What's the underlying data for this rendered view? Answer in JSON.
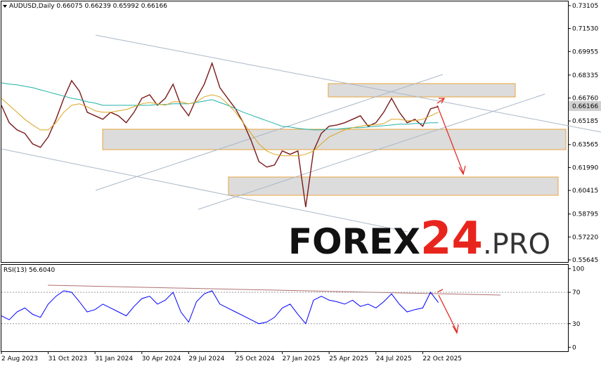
{
  "chart_data": [
    {
      "type": "line",
      "title": "AUDUSD,Daily",
      "ohlc": [
        0.66075,
        0.66239,
        0.65992,
        0.66166
      ],
      "categories": [
        "2 Aug 2023",
        null,
        null,
        null,
        null,
        null,
        "31 Oct 2023",
        null,
        null,
        null,
        null,
        null,
        "31 Jan 2024",
        null,
        null,
        null,
        null,
        null,
        "30 Apr 2024",
        null,
        null,
        null,
        null,
        null,
        "29 Jul 2024",
        null,
        null,
        null,
        null,
        null,
        "25 Oct 2024",
        null,
        null,
        null,
        null,
        null,
        "27 Jan 2025",
        null,
        null,
        null,
        null,
        null,
        "25 Apr 2025",
        null,
        null,
        null,
        null,
        null,
        "24 Jul 2025",
        null,
        null,
        null,
        null,
        null,
        "22 Oct 2025",
        null,
        null
      ],
      "series": [
        {
          "color": "#7a1a1a",
          "values": [
            0.6626,
            0.6506,
            0.6457,
            0.6433,
            0.6361,
            0.6337,
            0.6409,
            0.653,
            0.6674,
            0.6795,
            0.6723,
            0.6578,
            0.6554,
            0.653,
            0.6578,
            0.6554,
            0.6506,
            0.6578,
            0.6674,
            0.6698,
            0.6626,
            0.6674,
            0.6771,
            0.6626,
            0.6554,
            0.6674,
            0.6771,
            0.6915,
            0.6747,
            0.6674,
            0.6602,
            0.6506,
            0.6385,
            0.624,
            0.6202,
            0.6216,
            0.6313,
            0.6289,
            0.6313,
            0.5927,
            0.6313,
            0.6433,
            0.6482,
            0.6491,
            0.6506,
            0.653,
            0.6554,
            0.6482,
            0.6506,
            0.6578,
            0.6674,
            0.6578,
            0.6506,
            0.653,
            0.6482,
            0.6602,
            0.6617
          ]
        },
        {
          "color": "#20b2aa",
          "values": [
            0.678,
            0.6771,
            0.6766,
            0.6756,
            0.6747,
            0.6732,
            0.6718,
            0.6703,
            0.6689,
            0.6674,
            0.6665,
            0.665,
            0.6641,
            0.6626,
            0.6626,
            0.6626,
            0.6626,
            0.6626,
            0.6626,
            0.6626,
            0.6631,
            0.6631,
            0.6636,
            0.6636,
            0.6636,
            0.6645,
            0.6655,
            0.6665,
            0.6645,
            0.6626,
            0.6602,
            0.6578,
            0.6559,
            0.6539,
            0.652,
            0.6501,
            0.6481,
            0.6477,
            0.6467,
            0.6462,
            0.6457,
            0.6457,
            0.6462,
            0.6462,
            0.6467,
            0.6472,
            0.6472,
            0.6477,
            0.6481,
            0.6486,
            0.6491,
            0.6496,
            0.6496,
            0.6501,
            0.6501,
            0.6506,
            0.6506
          ]
        },
        {
          "color": "#daa520",
          "values": [
            0.6674,
            0.6626,
            0.6578,
            0.653,
            0.6491,
            0.6457,
            0.6457,
            0.6506,
            0.6578,
            0.6626,
            0.6636,
            0.6616,
            0.6588,
            0.6578,
            0.6578,
            0.6588,
            0.6597,
            0.6616,
            0.6636,
            0.6645,
            0.6636,
            0.6626,
            0.665,
            0.665,
            0.6636,
            0.665,
            0.6684,
            0.6698,
            0.6684,
            0.6636,
            0.6578,
            0.6506,
            0.6433,
            0.6361,
            0.6313,
            0.6289,
            0.6279,
            0.6279,
            0.6279,
            0.6289,
            0.6313,
            0.6361,
            0.6409,
            0.6433,
            0.6457,
            0.6472,
            0.6482,
            0.6491,
            0.6491,
            0.6501,
            0.653,
            0.653,
            0.652,
            0.652,
            0.653,
            0.6554,
            0.6578
          ]
        }
      ],
      "ylim": [
        0.5545,
        0.7344
      ],
      "yticks": [
        0.73105,
        {
          "value": 0.7153,
          "label": "0.71530"
        },
        0.69955,
        0.68335,
        {
          "value": 0.6676,
          "label": "0.66760"
        },
        0.65185,
        0.63565,
        {
          "value": 0.6199,
          "label": "0.61990"
        },
        0.60415,
        0.58795,
        {
          "value": 0.5722,
          "label": "0.57220"
        },
        0.55645
      ],
      "watermark": [
        "FOREX",
        "24",
        ".PRO"
      ]
    },
    {
      "type": "line",
      "title": "RSI(13)",
      "current": {
        "value": 56.604,
        "label": "56.6040"
      },
      "series": [
        {
          "color": "#0000ff",
          "values": [
            40,
            35,
            45,
            50,
            42,
            38,
            55,
            65,
            72,
            70,
            58,
            45,
            48,
            55,
            50,
            45,
            40,
            52,
            62,
            65,
            55,
            60,
            70,
            45,
            32,
            58,
            68,
            72,
            55,
            50,
            45,
            40,
            35,
            30,
            32,
            38,
            50,
            55,
            42,
            30,
            60,
            65,
            60,
            58,
            55,
            60,
            52,
            55,
            50,
            58,
            68,
            55,
            45,
            48,
            50,
            70,
            57
          ]
        }
      ],
      "ylim": [
        -6,
        105
      ],
      "yticks": [
        100,
        70,
        30,
        0
      ],
      "levels": [
        70,
        30
      ]
    }
  ]
}
